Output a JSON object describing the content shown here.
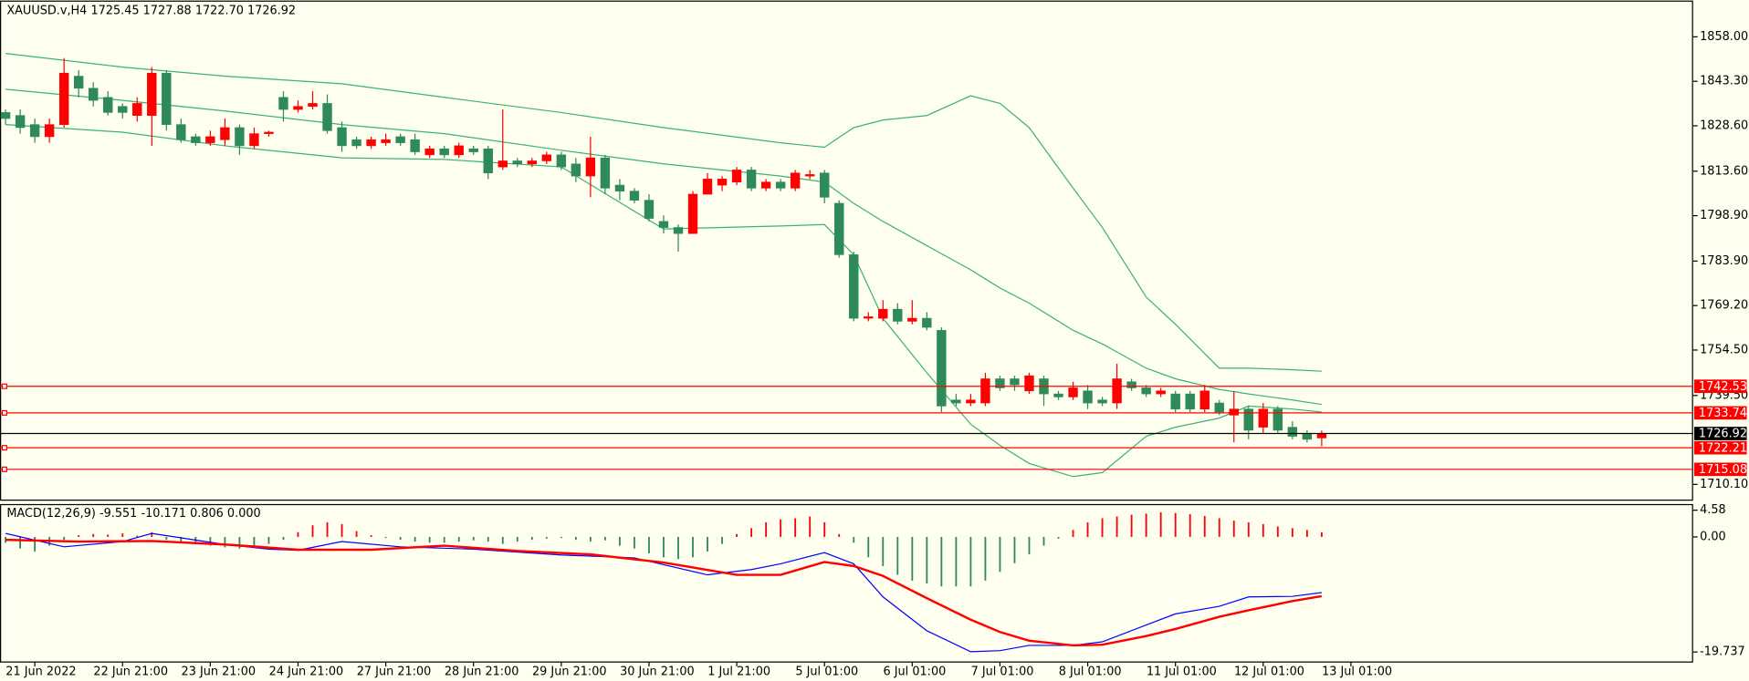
{
  "chart_data": {
    "type": "candlestick",
    "header": "XAUUSD.v,H4  1725.45 1727.88 1722.70 1726.92",
    "up_color": "#ff0000",
    "down_color": "#2e8b57",
    "background": "#fffff0",
    "xlim": [
      -0.38,
      115.4
    ],
    "xticks": [
      {
        "value": 2,
        "label": "21 Jun 2022"
      },
      {
        "value": 8,
        "label": "22 Jun 21:00"
      },
      {
        "value": 14,
        "label": "23 Jun 21:00"
      },
      {
        "value": 20,
        "label": "24 Jun 21:00"
      },
      {
        "value": 26,
        "label": "27 Jun 21:00"
      },
      {
        "value": 32,
        "label": "28 Jun 21:00"
      },
      {
        "value": 38,
        "label": "29 Jun 21:00"
      },
      {
        "value": 44,
        "label": "30 Jun 21:00"
      },
      {
        "value": 50,
        "label": "1 Jul 21:00"
      },
      {
        "value": 56,
        "label": "5 Jul 01:00"
      },
      {
        "value": 62,
        "label": "6 Jul 01:00"
      },
      {
        "value": 68,
        "label": "7 Jul 01:00"
      },
      {
        "value": 74,
        "label": "8 Jul 01:00"
      },
      {
        "value": 80,
        "label": "11 Jul 01:00"
      },
      {
        "value": 86,
        "label": "12 Jul 01:00"
      },
      {
        "value": 92,
        "label": "13 Jul 01:00"
      }
    ],
    "ylim": [
      1704.9,
      1869.8
    ],
    "yticks": [
      {
        "value": 1858,
        "label": "1858.00"
      },
      {
        "value": 1843.3,
        "label": "1843.30"
      },
      {
        "value": 1828.6,
        "label": "1828.60"
      },
      {
        "value": 1813.6,
        "label": "1813.60"
      },
      {
        "value": 1798.9,
        "label": "1798.90"
      },
      {
        "value": 1783.9,
        "label": "1783.90"
      },
      {
        "value": 1769.2,
        "label": "1769.20"
      },
      {
        "value": 1754.5,
        "label": "1754.50"
      },
      {
        "value": 1739.5,
        "label": "1739.50"
      },
      {
        "value": 1710.1,
        "label": "1710.10"
      }
    ],
    "candles": [
      [
        1833,
        1834,
        1829,
        1831
      ],
      [
        1832,
        1834,
        1826,
        1828
      ],
      [
        1829,
        1831,
        1823,
        1825
      ],
      [
        1825,
        1831,
        1823,
        1829
      ],
      [
        1829,
        1851,
        1828,
        1846
      ],
      [
        1845,
        1847,
        1838,
        1841
      ],
      [
        1841,
        1843,
        1835,
        1837
      ],
      [
        1838,
        1840,
        1832,
        1833
      ],
      [
        1835,
        1836,
        1831,
        1833
      ],
      [
        1832,
        1838,
        1830,
        1836
      ],
      [
        1832,
        1848,
        1822,
        1846
      ],
      [
        1846,
        1847,
        1827,
        1829
      ],
      [
        1829,
        1831,
        1823,
        1824
      ],
      [
        1825,
        1826,
        1822,
        1823
      ],
      [
        1823,
        1827,
        1822,
        1825
      ],
      [
        1824,
        1831,
        1822,
        1828
      ],
      [
        1828,
        1829,
        1819,
        1822
      ],
      [
        1822,
        1828,
        1821,
        1826
      ],
      [
        1826,
        1827,
        1825,
        1826.5
      ],
      [
        1838,
        1840,
        1830,
        1834
      ],
      [
        1834,
        1837,
        1833,
        1835
      ],
      [
        1835,
        1840,
        1834,
        1836
      ],
      [
        1836,
        1839,
        1826,
        1827
      ],
      [
        1828,
        1830,
        1820,
        1822
      ],
      [
        1824,
        1825,
        1821,
        1822
      ],
      [
        1822,
        1825,
        1821,
        1824
      ],
      [
        1823,
        1826,
        1822,
        1824
      ],
      [
        1825,
        1826,
        1822,
        1823
      ],
      [
        1824,
        1826,
        1819,
        1820
      ],
      [
        1819,
        1822,
        1818,
        1821
      ],
      [
        1821,
        1822,
        1818,
        1819
      ],
      [
        1819,
        1823,
        1818,
        1822
      ],
      [
        1821,
        1822,
        1819,
        1820
      ],
      [
        1821,
        1822,
        1811,
        1813
      ],
      [
        1815,
        1834,
        1814,
        1817
      ],
      [
        1817,
        1818,
        1815,
        1816
      ],
      [
        1816,
        1818,
        1815,
        1817
      ],
      [
        1817,
        1820,
        1816,
        1819
      ],
      [
        1819,
        1820,
        1814,
        1815
      ],
      [
        1816,
        1818,
        1810,
        1812
      ],
      [
        1812,
        1825,
        1805,
        1818
      ],
      [
        1818,
        1819,
        1806,
        1808
      ],
      [
        1809,
        1811,
        1804,
        1807
      ],
      [
        1807,
        1808,
        1803,
        1804
      ],
      [
        1804,
        1806,
        1797,
        1798
      ],
      [
        1797,
        1799,
        1793,
        1795
      ],
      [
        1795,
        1796,
        1787,
        1793
      ],
      [
        1793,
        1807,
        1793,
        1806
      ],
      [
        1806,
        1813,
        1806,
        1811
      ],
      [
        1809,
        1812,
        1807,
        1811
      ],
      [
        1810,
        1815,
        1809,
        1814
      ],
      [
        1814,
        1815,
        1807,
        1808
      ],
      [
        1808,
        1811,
        1807,
        1810
      ],
      [
        1810,
        1811,
        1807,
        1808
      ],
      [
        1808,
        1814,
        1807,
        1813
      ],
      [
        1812,
        1814,
        1811,
        1812.5
      ],
      [
        1813,
        1814,
        1803,
        1805
      ],
      [
        1803,
        1804,
        1785,
        1786
      ],
      [
        1786,
        1787,
        1764,
        1765
      ],
      [
        1765,
        1767,
        1764,
        1765.5
      ],
      [
        1765,
        1771,
        1764,
        1768
      ],
      [
        1768,
        1770,
        1763,
        1764
      ],
      [
        1764,
        1771,
        1763,
        1765
      ],
      [
        1765,
        1767,
        1761,
        1762
      ],
      [
        1761,
        1762,
        1734,
        1736
      ],
      [
        1738,
        1740,
        1736,
        1737
      ],
      [
        1737,
        1740,
        1736,
        1738
      ],
      [
        1737,
        1747,
        1736,
        1745
      ],
      [
        1745,
        1746,
        1741,
        1742
      ],
      [
        1745,
        1746,
        1741,
        1743
      ],
      [
        1741,
        1747,
        1740,
        1746
      ],
      [
        1745,
        1746,
        1736,
        1740
      ],
      [
        1740,
        1741,
        1738,
        1739
      ],
      [
        1739,
        1744,
        1738,
        1742
      ],
      [
        1741,
        1743,
        1735,
        1737
      ],
      [
        1738,
        1739,
        1736,
        1737
      ],
      [
        1737,
        1750,
        1735,
        1745
      ],
      [
        1744,
        1745,
        1741,
        1742
      ],
      [
        1742,
        1743,
        1739,
        1740
      ],
      [
        1740,
        1742,
        1739,
        1741
      ],
      [
        1740,
        1741,
        1734,
        1735
      ],
      [
        1740,
        1741,
        1734,
        1735
      ],
      [
        1735,
        1743,
        1734,
        1741
      ],
      [
        1737,
        1738,
        1733,
        1734
      ],
      [
        1733,
        1741,
        1724,
        1735
      ],
      [
        1735,
        1736,
        1725,
        1728
      ],
      [
        1729,
        1737,
        1727,
        1735
      ],
      [
        1735,
        1736,
        1727,
        1728
      ],
      [
        1729,
        1731,
        1725,
        1726
      ],
      [
        1727,
        1728,
        1724,
        1725
      ],
      [
        1725.45,
        1727.88,
        1722.7,
        1726.92
      ]
    ],
    "bands": {
      "color": "#3cb371",
      "x": [
        0,
        8,
        15,
        23,
        30,
        38,
        45,
        53,
        56,
        58,
        60,
        63,
        66,
        68,
        70,
        73,
        75,
        78,
        80,
        83,
        85,
        88,
        90
      ],
      "upper": [
        1852.5,
        1848,
        1845,
        1842.5,
        1838,
        1833,
        1828,
        1823,
        1821.5,
        1828,
        1830.5,
        1832,
        1838.5,
        1836,
        1828,
        1808,
        1795,
        1772,
        1763,
        1748.5,
        1748.5,
        1748,
        1747.5
      ],
      "middle": [
        1840.7,
        1837,
        1833.5,
        1829,
        1826,
        1820.5,
        1816,
        1812,
        1810,
        1803,
        1797,
        1789,
        1781,
        1775,
        1770,
        1761,
        1756.5,
        1748.5,
        1745,
        1741.5,
        1740,
        1738,
        1736.5
      ],
      "lower": [
        1829,
        1826.5,
        1822,
        1818,
        1817.5,
        1815,
        1794.5,
        1795.5,
        1796,
        1786,
        1765,
        1747,
        1730,
        1723,
        1717,
        1712.7,
        1714,
        1726,
        1729,
        1732,
        1736,
        1735,
        1734
      ]
    },
    "levels": [
      {
        "value": 1742.53,
        "color": "#ff0000"
      },
      {
        "value": 1733.74,
        "color": "#ff0000"
      },
      {
        "value": 1722.21,
        "color": "#ff0000"
      },
      {
        "value": 1715.08,
        "color": "#ff0000"
      },
      {
        "value": 1726.92,
        "color": "#000000"
      }
    ],
    "macd": {
      "header": "MACD(12,26,9) -9.551 -10.171 0.806 0.000",
      "ylim": [
        -21.46,
        5.54
      ],
      "yticks": [
        4.58,
        {
          "value": 0,
          "label": "0.00"
        },
        -19.737
      ],
      "histogram": [
        -1,
        -2,
        -2.5,
        -1.5,
        -0.5,
        0.3,
        0.5,
        0.4,
        0.6,
        0.2,
        0.8,
        -0.5,
        -1,
        -1.2,
        -1.5,
        -1.8,
        -2,
        -1.5,
        -1.2,
        -0.5,
        0.8,
        2,
        2.5,
        2.2,
        1,
        0.3,
        -0.2,
        -0.5,
        -0.8,
        -1,
        -1,
        -0.8,
        -0.6,
        -0.8,
        -1.2,
        -0.8,
        -0.5,
        -0.3,
        -0.2,
        -0.5,
        -0.8,
        -0.6,
        -1.5,
        -2,
        -2.8,
        -3.5,
        -3.8,
        -3.5,
        -2.5,
        -1.2,
        0.5,
        1.5,
        2.5,
        3,
        3.2,
        3.5,
        2.5,
        0.5,
        -1,
        -3.5,
        -5,
        -6.5,
        -7.5,
        -8,
        -8.5,
        -8.5,
        -8.5,
        -7.5,
        -6,
        -4.5,
        -3,
        -1.5,
        -0.3,
        1.2,
        2.5,
        3.2,
        3.5,
        3.8,
        4,
        4.2,
        4.1,
        3.9,
        3.6,
        3.2,
        2.8,
        2.5,
        2.2,
        1.8,
        1.5,
        1.2,
        0.8
      ],
      "series": [
        {
          "color": "#0000ff",
          "line_width": 1,
          "x": [
            0,
            4,
            8,
            10,
            15,
            18,
            20,
            23,
            27,
            32,
            38,
            43,
            48,
            51,
            53,
            56,
            58,
            60,
            63,
            66,
            68,
            70,
            73,
            75,
            78,
            80,
            83,
            85,
            88,
            90
          ],
          "values": [
            0.6,
            -1.7,
            -0.8,
            0.6,
            -1.3,
            -2.1,
            -2.3,
            -0.8,
            -1.7,
            -2.1,
            -3.1,
            -3.6,
            -6.5,
            -5.6,
            -4.6,
            -2.7,
            -4.6,
            -10.3,
            -16.1,
            -19.7,
            -19.5,
            -18.6,
            -18.6,
            -18,
            -15.1,
            -13.2,
            -11.9,
            -10.3,
            -10.2,
            -9.551
          ]
        },
        {
          "color": "#ff0000",
          "line_width": 2,
          "x": [
            0,
            5,
            10,
            15,
            20,
            25,
            30,
            35,
            40,
            45,
            50,
            53,
            56,
            58,
            60,
            63,
            66,
            68,
            70,
            73,
            75,
            78,
            80,
            83,
            85,
            88,
            90
          ],
          "values": [
            -0.5,
            -0.8,
            -0.7,
            -1.3,
            -2.2,
            -2.2,
            -1.5,
            -2.4,
            -3.0,
            -4.4,
            -6.5,
            -6.5,
            -4.3,
            -5.0,
            -6.7,
            -10.5,
            -14.2,
            -16.3,
            -17.8,
            -18.6,
            -18.5,
            -17.0,
            -15.8,
            -13.7,
            -12.6,
            -11.0,
            -10.171
          ]
        }
      ]
    }
  }
}
